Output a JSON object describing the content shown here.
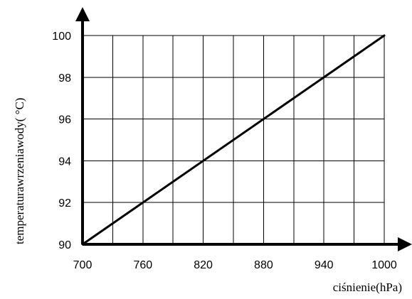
{
  "chart_data": {
    "type": "line",
    "title": "",
    "xlabel": "ciśnienie(hPa)",
    "ylabel": "temperaturawrzeniawody(   °C)",
    "xlim": [
      700,
      1000
    ],
    "ylim": [
      90,
      100
    ],
    "x_ticks": [
      700,
      760,
      820,
      880,
      940,
      1000
    ],
    "y_ticks": [
      90,
      92,
      94,
      96,
      98,
      100
    ],
    "x_grid_step": 30,
    "y_grid_step": 2,
    "grid": true,
    "series": [
      {
        "x": [
          700,
          1000
        ],
        "y": [
          90,
          100
        ]
      }
    ],
    "colors": {
      "line": "#000000",
      "grid": "#000000",
      "axis": "#000000",
      "background": "#ffffff"
    }
  }
}
